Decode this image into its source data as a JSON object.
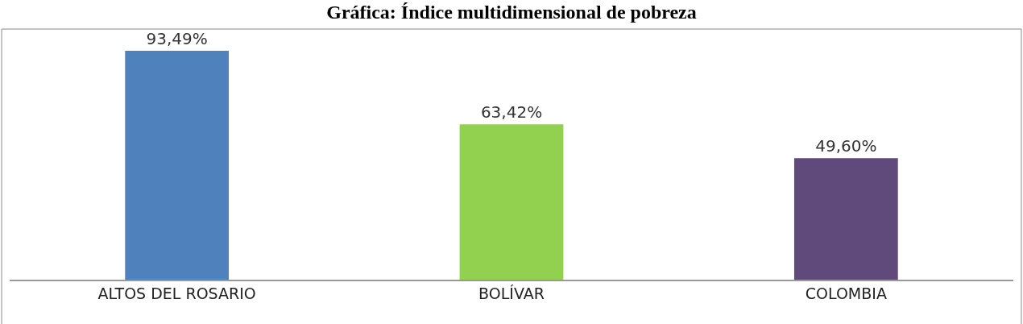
{
  "chart_data": {
    "type": "bar",
    "title": "Gráfica: Índice multidimensional de pobreza",
    "categories": [
      "ALTOS DEL ROSARIO",
      "BOLÍVAR",
      "COLOMBIA"
    ],
    "values": [
      93.49,
      63.42,
      49.6
    ],
    "colors": [
      "#4f81bd",
      "#92d050",
      "#604a7b"
    ],
    "value_labels": [
      "93,49%",
      "63,42%",
      "49,60%"
    ],
    "grid": false
  }
}
